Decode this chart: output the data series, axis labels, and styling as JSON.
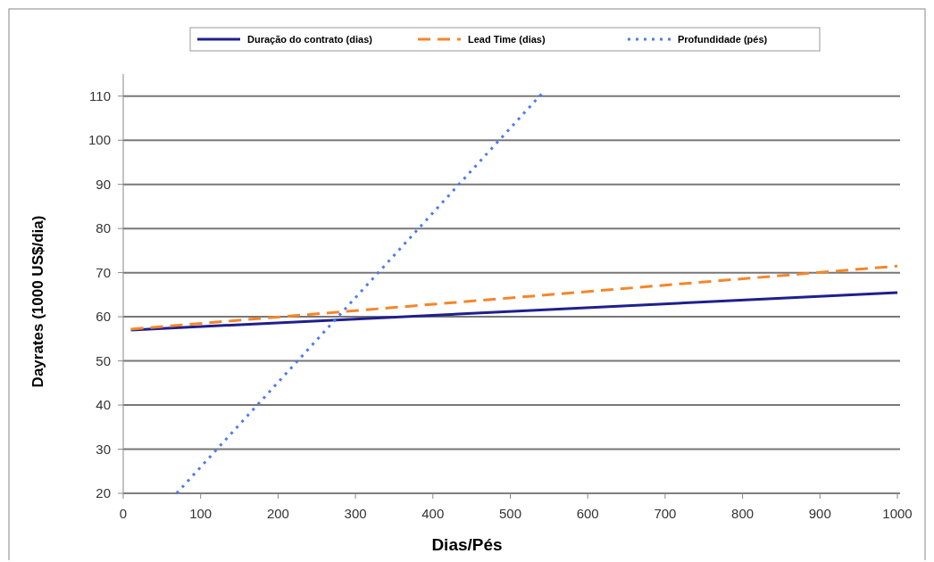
{
  "chart_data": {
    "type": "line",
    "xlabel": "Dias/Pés",
    "ylabel": "Dayrates (1000 US$/dia)",
    "xlim": [
      0,
      1000
    ],
    "xticks": [
      0,
      100,
      200,
      300,
      400,
      500,
      600,
      700,
      800,
      900,
      1000
    ],
    "ylim": [
      20,
      115
    ],
    "yticks": [
      20,
      30,
      40,
      50,
      60,
      70,
      80,
      90,
      100,
      110
    ],
    "grid": "y",
    "legend": "top",
    "marker": "none",
    "series": [
      {
        "name": "Duração do contrato (dias)",
        "color": "#1f1f8f",
        "line_style": "solid",
        "x": [
          10,
          1000
        ],
        "values": [
          57,
          65.5
        ]
      },
      {
        "name": "Lead Time (dias)",
        "color": "#f5862a",
        "line_style": "dashed",
        "x": [
          10,
          1000
        ],
        "values": [
          57.2,
          71.5
        ]
      },
      {
        "name": "Profundidade (pés)",
        "color": "#4b7bf0",
        "line_style": "dotted",
        "x": [
          69,
          543
        ],
        "values": [
          20,
          111
        ]
      }
    ]
  }
}
